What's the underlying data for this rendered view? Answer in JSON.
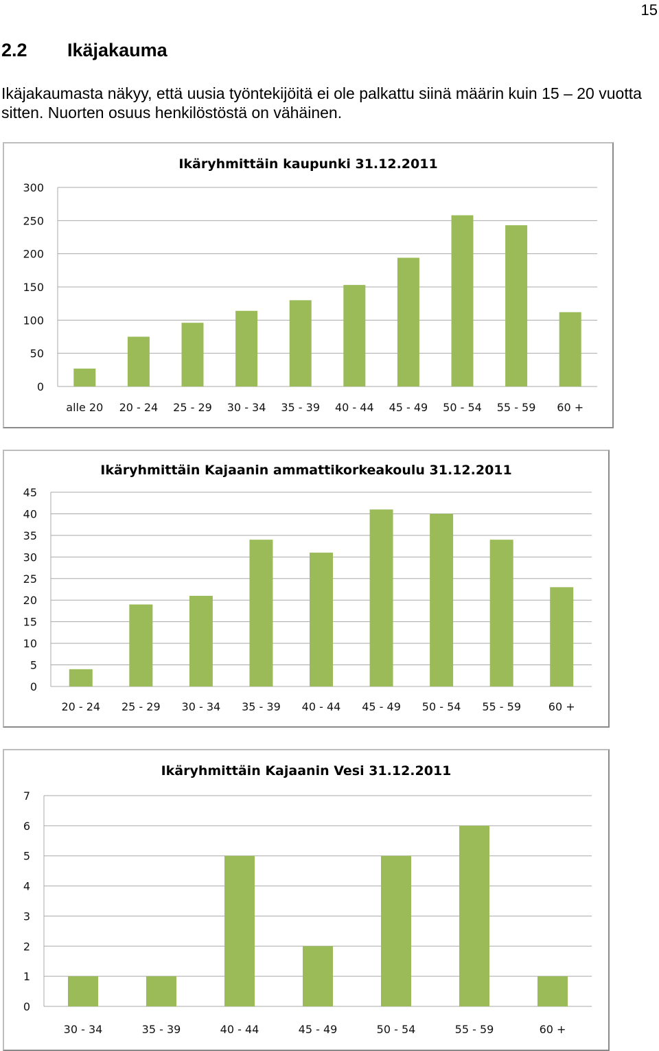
{
  "page_number": "15",
  "section": {
    "number": "2.2",
    "title": "Ikäjakauma"
  },
  "paragraph": "Ikäjakaumasta näkyy, että uusia työntekijöitä ei ole palkattu siinä määrin kuin 15 – 20 vuotta sitten. Nuorten osuus henkilöstöstä on vähäinen.",
  "colors": {
    "bar": "#9bbb59",
    "grid": "#a8a8a8"
  },
  "chart_data": [
    {
      "type": "bar",
      "title": "Ikäryhmittäin kaupunki 31.12.2011",
      "categories": [
        "alle 20",
        "20 - 24",
        "25 - 29",
        "30 - 34",
        "35 - 39",
        "40 - 44",
        "45 - 49",
        "50 - 54",
        "55 - 59",
        "60 +"
      ],
      "values": [
        27,
        75,
        96,
        114,
        130,
        153,
        194,
        258,
        243,
        112
      ],
      "ylim": [
        0,
        300
      ],
      "yticks": [
        0,
        50,
        100,
        150,
        200,
        250,
        300
      ],
      "grid": true,
      "legend": "none"
    },
    {
      "type": "bar",
      "title": "Ikäryhmittäin Kajaanin ammattikorkeakoulu 31.12.2011",
      "categories": [
        "20 - 24",
        "25 - 29",
        "30 - 34",
        "35 - 39",
        "40 - 44",
        "45 - 49",
        "50 - 54",
        "55 - 59",
        "60 +"
      ],
      "values": [
        4,
        19,
        21,
        34,
        31,
        41,
        40,
        34,
        23
      ],
      "ylim": [
        0,
        45
      ],
      "yticks": [
        0,
        5,
        10,
        15,
        20,
        25,
        30,
        35,
        40,
        45
      ],
      "grid": true,
      "legend": "none"
    },
    {
      "type": "bar",
      "title": "Ikäryhmittäin Kajaanin Vesi 31.12.2011",
      "categories": [
        "30 - 34",
        "35 - 39",
        "40 - 44",
        "45 - 49",
        "50 - 54",
        "55 - 59",
        "60 +"
      ],
      "values": [
        1,
        1,
        5,
        2,
        5,
        6,
        1
      ],
      "ylim": [
        0,
        7
      ],
      "yticks": [
        0,
        1,
        2,
        3,
        4,
        5,
        6,
        7
      ],
      "grid": true,
      "legend": "none"
    }
  ]
}
